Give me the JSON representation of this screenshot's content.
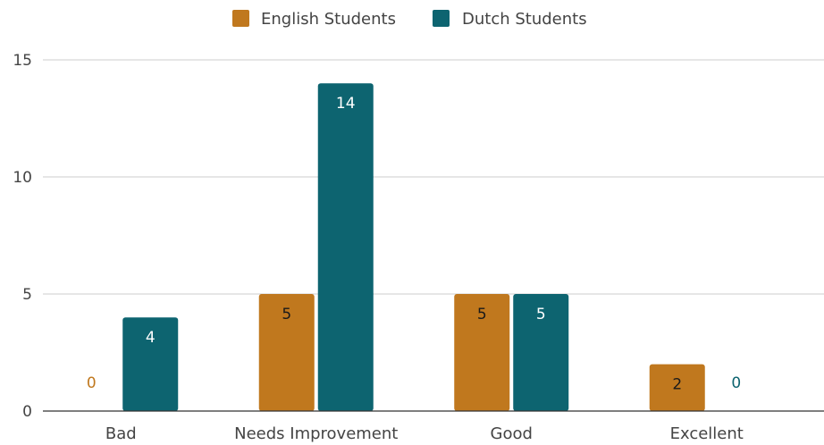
{
  "chart_data": {
    "type": "bar",
    "title": "",
    "xlabel": "",
    "ylabel": "",
    "categories": [
      "Bad",
      "Needs Improvement",
      "Good",
      "Excellent"
    ],
    "series": [
      {
        "name": "English Students",
        "color": "#c0781e",
        "values": [
          0,
          5,
          5,
          2
        ]
      },
      {
        "name": "Dutch Students",
        "color": "#0d6470",
        "values": [
          4,
          14,
          5,
          0
        ]
      }
    ],
    "ylim": [
      0,
      15
    ],
    "yticks": [
      0,
      5,
      10,
      15
    ],
    "grid": true,
    "legend": "top-center",
    "data_labels": true
  }
}
